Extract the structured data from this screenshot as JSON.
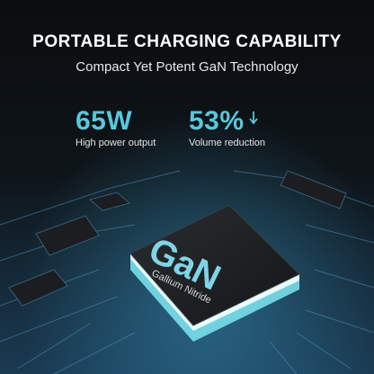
{
  "header": {
    "title": "PORTABLE CHARGING CAPABILITY",
    "subtitle": "Compact Yet Potent GaN Technology"
  },
  "stats": [
    {
      "value": "65W",
      "label": "High power output"
    },
    {
      "value": "53%",
      "label": "Volume reduction"
    }
  ],
  "chip": {
    "label": "GaN",
    "sublabel": "Gallium Nitride"
  }
}
